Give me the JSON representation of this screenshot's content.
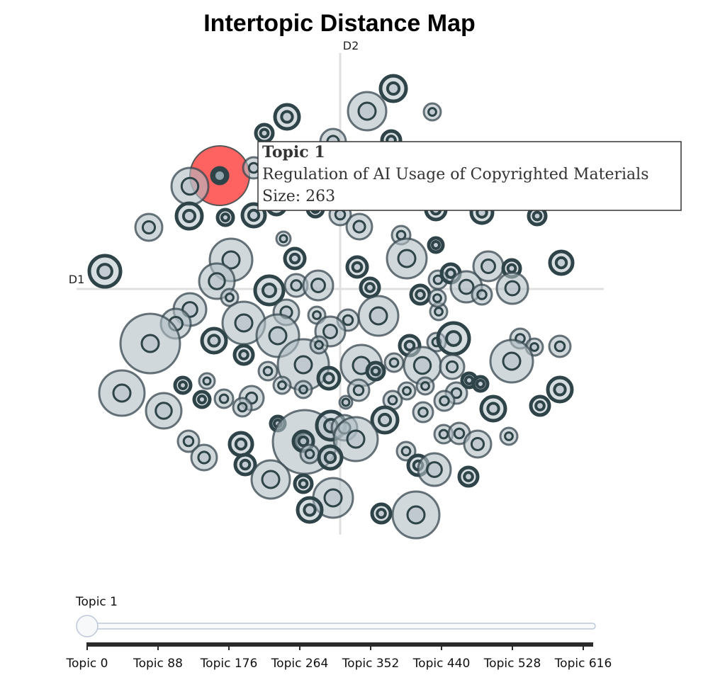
{
  "colors": {
    "bubble_fill": "#b0bec5",
    "bubble_stroke": "#37474f",
    "highlight": "#ff6361",
    "axis": "#dddddd",
    "slider_rail": "#bec8d9",
    "tick_bar": "#2a2a2a"
  },
  "chart_data": {
    "type": "scatter",
    "title": "Intertopic Distance Map",
    "xlabel": "D1",
    "ylabel": "D2",
    "grid": false,
    "highlighted_topic": {
      "name": "Topic 1",
      "label": "Regulation of AI Usage of Copyrighted Materials",
      "size_text": "Size: 263"
    },
    "slider": {
      "current": "Topic 1",
      "ticks": [
        "Topic 0",
        "Topic 88",
        "Topic 176",
        "Topic 264",
        "Topic 352",
        "Topic 440",
        "Topic 528",
        "Topic 616"
      ]
    }
  },
  "bubbles": [
    [
      310,
      248,
      42,
      "h"
    ],
    [
      555,
      125,
      18,
      "d"
    ],
    [
      518,
      157,
      27,
      "l"
    ],
    [
      610,
      158,
      12,
      "l"
    ],
    [
      405,
      165,
      17,
      "d"
    ],
    [
      373,
      188,
      12,
      "d"
    ],
    [
      552,
      198,
      13,
      "d"
    ],
    [
      470,
      200,
      18,
      "l"
    ],
    [
      358,
      237,
      15,
      "l"
    ],
    [
      268,
      263,
      26,
      "l"
    ],
    [
      267,
      305,
      18,
      "d"
    ],
    [
      318,
      307,
      11,
      "d"
    ],
    [
      358,
      304,
      16,
      "d"
    ],
    [
      210,
      321,
      19,
      "l"
    ],
    [
      390,
      290,
      13,
      "d"
    ],
    [
      445,
      295,
      11,
      "d"
    ],
    [
      480,
      303,
      15,
      "l"
    ],
    [
      507,
      320,
      18,
      "l"
    ],
    [
      615,
      296,
      14,
      "d"
    ],
    [
      680,
      300,
      15,
      "d"
    ],
    [
      758,
      305,
      12,
      "d"
    ],
    [
      400,
      337,
      10,
      "l"
    ],
    [
      566,
      332,
      13,
      "l"
    ],
    [
      615,
      346,
      10,
      "d"
    ],
    [
      148,
      383,
      22,
      "d"
    ],
    [
      326,
      367,
      30,
      "l"
    ],
    [
      306,
      397,
      25,
      "l"
    ],
    [
      416,
      365,
      14,
      "d"
    ],
    [
      504,
      377,
      14,
      "d"
    ],
    [
      574,
      365,
      28,
      "l"
    ],
    [
      689,
      376,
      21,
      "l"
    ],
    [
      722,
      379,
      12,
      "d"
    ],
    [
      792,
      371,
      16,
      "d"
    ],
    [
      380,
      410,
      20,
      "d"
    ],
    [
      418,
      403,
      16,
      "l"
    ],
    [
      449,
      403,
      21,
      "l"
    ],
    [
      324,
      420,
      12,
      "l"
    ],
    [
      522,
      406,
      13,
      "d"
    ],
    [
      593,
      416,
      13,
      "d"
    ],
    [
      618,
      395,
      13,
      "l"
    ],
    [
      636,
      386,
      13,
      "d"
    ],
    [
      658,
      405,
      22,
      "l"
    ],
    [
      680,
      416,
      14,
      "l"
    ],
    [
      723,
      407,
      22,
      "l"
    ],
    [
      268,
      437,
      23,
      "l"
    ],
    [
      248,
      457,
      21,
      "l"
    ],
    [
      344,
      456,
      30,
      "l"
    ],
    [
      404,
      441,
      18,
      "l"
    ],
    [
      447,
      445,
      12,
      "l"
    ],
    [
      491,
      452,
      15,
      "l"
    ],
    [
      534,
      446,
      28,
      "l"
    ],
    [
      619,
      440,
      12,
      "l"
    ],
    [
      617,
      421,
      12,
      "l"
    ],
    [
      212,
      485,
      42,
      "l"
    ],
    [
      302,
      481,
      17,
      "d"
    ],
    [
      392,
      474,
      30,
      "l"
    ],
    [
      466,
      468,
      21,
      "l"
    ],
    [
      344,
      501,
      13,
      "d"
    ],
    [
      428,
      515,
      36,
      "l"
    ],
    [
      450,
      487,
      12,
      "l"
    ],
    [
      578,
      488,
      14,
      "d"
    ],
    [
      616,
      483,
      13,
      "l"
    ],
    [
      640,
      478,
      22,
      "d"
    ],
    [
      734,
      478,
      14,
      "l"
    ],
    [
      754,
      490,
      12,
      "l"
    ],
    [
      790,
      489,
      15,
      "l"
    ],
    [
      722,
      510,
      30,
      "l"
    ],
    [
      510,
      516,
      29,
      "l"
    ],
    [
      530,
      524,
      12,
      "d"
    ],
    [
      556,
      512,
      13,
      "l"
    ],
    [
      596,
      516,
      26,
      "l"
    ],
    [
      638,
      518,
      17,
      "l"
    ],
    [
      378,
      524,
      13,
      "l"
    ],
    [
      464,
      534,
      15,
      "d"
    ],
    [
      172,
      555,
      32,
      "l"
    ],
    [
      258,
      544,
      11,
      "d"
    ],
    [
      292,
      538,
      11,
      "l"
    ],
    [
      398,
      544,
      12,
      "l"
    ],
    [
      428,
      550,
      12,
      "l"
    ],
    [
      506,
      551,
      15,
      "l"
    ],
    [
      574,
      552,
      12,
      "l"
    ],
    [
      554,
      565,
      13,
      "l"
    ],
    [
      600,
      545,
      12,
      "l"
    ],
    [
      644,
      555,
      15,
      "l"
    ],
    [
      662,
      537,
      10,
      "d"
    ],
    [
      678,
      542,
      10,
      "d"
    ],
    [
      790,
      550,
      17,
      "d"
    ],
    [
      231,
      580,
      25,
      "l"
    ],
    [
      285,
      564,
      11,
      "d"
    ],
    [
      316,
      563,
      13,
      "l"
    ],
    [
      355,
      562,
      17,
      "l"
    ],
    [
      342,
      575,
      13,
      "l"
    ],
    [
      488,
      568,
      9,
      "l"
    ],
    [
      543,
      593,
      18,
      "d"
    ],
    [
      597,
      582,
      14,
      "l"
    ],
    [
      627,
      566,
      14,
      "l"
    ],
    [
      696,
      577,
      17,
      "d"
    ],
    [
      762,
      573,
      13,
      "d"
    ],
    [
      392,
      598,
      10,
      "d"
    ],
    [
      430,
      624,
      45,
      "l"
    ],
    [
      467,
      601,
      20,
      "d"
    ],
    [
      486,
      604,
      18,
      "l"
    ],
    [
      502,
      620,
      31,
      "l"
    ],
    [
      428,
      623,
      14,
      "d"
    ],
    [
      437,
      641,
      13,
      "l"
    ],
    [
      466,
      646,
      16,
      "d"
    ],
    [
      340,
      627,
      16,
      "d"
    ],
    [
      266,
      623,
      15,
      "l"
    ],
    [
      288,
      646,
      18,
      "l"
    ],
    [
      626,
      613,
      13,
      "l"
    ],
    [
      648,
      612,
      15,
      "l"
    ],
    [
      674,
      627,
      19,
      "l"
    ],
    [
      718,
      616,
      12,
      "l"
    ],
    [
      573,
      637,
      13,
      "l"
    ],
    [
      590,
      657,
      14,
      "d"
    ],
    [
      613,
      663,
      23,
      "l"
    ],
    [
      346,
      656,
      14,
      "d"
    ],
    [
      382,
      677,
      27,
      "l"
    ],
    [
      428,
      683,
      12,
      "d"
    ],
    [
      470,
      703,
      28,
      "l"
    ],
    [
      437,
      720,
      17,
      "d"
    ],
    [
      538,
      725,
      13,
      "d"
    ],
    [
      587,
      727,
      33,
      "l"
    ],
    [
      661,
      673,
      13,
      "d"
    ]
  ]
}
